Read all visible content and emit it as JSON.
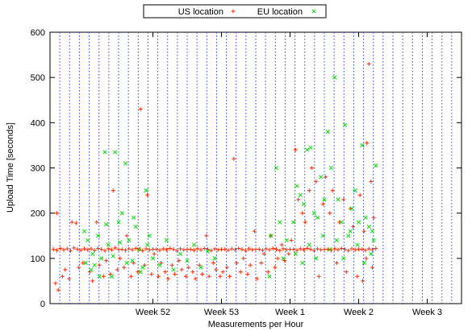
{
  "chart_data": {
    "type": "scatter",
    "title": "",
    "xlabel": "Measurements per Hour",
    "ylabel": "Upload Time [seconds]",
    "ylim": [
      0,
      600
    ],
    "yticks": [
      0,
      100,
      200,
      300,
      400,
      500,
      600
    ],
    "xlim_weeks": [
      50.5,
      56.5
    ],
    "xticks": [
      {
        "label": "Week 52",
        "pos": 52
      },
      {
        "label": "Week 53",
        "pos": 53
      },
      {
        "label": "Week 1",
        "pos": 54
      },
      {
        "label": "Week 2",
        "pos": 55
      },
      {
        "label": "Week 3",
        "pos": 56
      }
    ],
    "grid": "dotted vertical lines (blue), one per day",
    "legend_position": "top-center",
    "series": [
      {
        "name": "US location",
        "marker": "+",
        "color": "#ff2a00",
        "baseline": 120,
        "points": [
          [
            50.55,
            120
          ],
          [
            50.6,
            118
          ],
          [
            50.65,
            122
          ],
          [
            50.7,
            119
          ],
          [
            50.75,
            121
          ],
          [
            50.8,
            117
          ],
          [
            50.85,
            123
          ],
          [
            50.9,
            120
          ],
          [
            50.95,
            118
          ],
          [
            51.0,
            121
          ],
          [
            50.58,
            45
          ],
          [
            50.62,
            30
          ],
          [
            50.68,
            60
          ],
          [
            50.72,
            75
          ],
          [
            50.78,
            55
          ],
          [
            50.82,
            180
          ],
          [
            50.88,
            178
          ],
          [
            50.92,
            80
          ],
          [
            50.98,
            90
          ],
          [
            50.6,
            200
          ],
          [
            51.05,
            119
          ],
          [
            51.1,
            121
          ],
          [
            51.15,
            118
          ],
          [
            51.2,
            122
          ],
          [
            51.25,
            120
          ],
          [
            51.3,
            117
          ],
          [
            51.35,
            121
          ],
          [
            51.4,
            119
          ],
          [
            51.45,
            123
          ],
          [
            51.5,
            120
          ],
          [
            51.08,
            70
          ],
          [
            51.12,
            50
          ],
          [
            51.18,
            180
          ],
          [
            51.22,
            85
          ],
          [
            51.28,
            60
          ],
          [
            51.32,
            95
          ],
          [
            51.38,
            65
          ],
          [
            51.42,
            250
          ],
          [
            51.48,
            75
          ],
          [
            51.52,
            100
          ],
          [
            51.55,
            120
          ],
          [
            51.6,
            118
          ],
          [
            51.65,
            121
          ],
          [
            51.7,
            119
          ],
          [
            51.75,
            122
          ],
          [
            51.8,
            120
          ],
          [
            51.85,
            117
          ],
          [
            51.9,
            121
          ],
          [
            51.95,
            119
          ],
          [
            52.0,
            120
          ],
          [
            51.58,
            80
          ],
          [
            51.62,
            150
          ],
          [
            51.68,
            60
          ],
          [
            51.72,
            90
          ],
          [
            51.78,
            70
          ],
          [
            51.82,
            430
          ],
          [
            51.88,
            85
          ],
          [
            51.92,
            240
          ],
          [
            51.98,
            65
          ],
          [
            52.02,
            110
          ],
          [
            52.05,
            120
          ],
          [
            52.1,
            118
          ],
          [
            52.15,
            121
          ],
          [
            52.2,
            119
          ],
          [
            52.25,
            122
          ],
          [
            52.3,
            120
          ],
          [
            52.35,
            117
          ],
          [
            52.4,
            121
          ],
          [
            52.45,
            119
          ],
          [
            52.5,
            120
          ],
          [
            52.08,
            60
          ],
          [
            52.12,
            90
          ],
          [
            52.18,
            70
          ],
          [
            52.22,
            55
          ],
          [
            52.28,
            85
          ],
          [
            52.32,
            65
          ],
          [
            52.38,
            95
          ],
          [
            52.42,
            75
          ],
          [
            52.48,
            60
          ],
          [
            52.52,
            80
          ],
          [
            52.55,
            120
          ],
          [
            52.6,
            118
          ],
          [
            52.65,
            121
          ],
          [
            52.7,
            119
          ],
          [
            52.75,
            122
          ],
          [
            52.8,
            120
          ],
          [
            52.85,
            117
          ],
          [
            52.9,
            121
          ],
          [
            52.95,
            119
          ],
          [
            53.0,
            120
          ],
          [
            52.58,
            70
          ],
          [
            52.62,
            55
          ],
          [
            52.68,
            85
          ],
          [
            52.72,
            65
          ],
          [
            52.78,
            150
          ],
          [
            52.82,
            60
          ],
          [
            52.88,
            90
          ],
          [
            52.92,
            75
          ],
          [
            52.98,
            60
          ],
          [
            53.02,
            70
          ],
          [
            53.05,
            120
          ],
          [
            53.1,
            118
          ],
          [
            53.15,
            121
          ],
          [
            53.2,
            119
          ],
          [
            53.25,
            122
          ],
          [
            53.3,
            120
          ],
          [
            53.35,
            117
          ],
          [
            53.4,
            121
          ],
          [
            53.45,
            119
          ],
          [
            53.5,
            120
          ],
          [
            53.08,
            80
          ],
          [
            53.12,
            60
          ],
          [
            53.18,
            320
          ],
          [
            53.22,
            90
          ],
          [
            53.28,
            70
          ],
          [
            53.32,
            100
          ],
          [
            53.38,
            65
          ],
          [
            53.42,
            85
          ],
          [
            53.48,
            160
          ],
          [
            53.52,
            55
          ],
          [
            53.55,
            120
          ],
          [
            53.6,
            118
          ],
          [
            53.65,
            121
          ],
          [
            53.7,
            119
          ],
          [
            53.75,
            122
          ],
          [
            53.8,
            120
          ],
          [
            53.85,
            117
          ],
          [
            53.9,
            121
          ],
          [
            53.95,
            119
          ],
          [
            54.0,
            120
          ],
          [
            53.58,
            90
          ],
          [
            53.62,
            110
          ],
          [
            53.68,
            70
          ],
          [
            53.72,
            150
          ],
          [
            53.78,
            80
          ],
          [
            53.82,
            100
          ],
          [
            53.88,
            130
          ],
          [
            53.92,
            95
          ],
          [
            53.98,
            110
          ],
          [
            54.02,
            140
          ],
          [
            54.05,
            120
          ],
          [
            54.1,
            118
          ],
          [
            54.15,
            121
          ],
          [
            54.2,
            119
          ],
          [
            54.25,
            122
          ],
          [
            54.3,
            120
          ],
          [
            54.35,
            117
          ],
          [
            54.4,
            121
          ],
          [
            54.45,
            119
          ],
          [
            54.5,
            120
          ],
          [
            54.08,
            340
          ],
          [
            54.12,
            230
          ],
          [
            54.18,
            200
          ],
          [
            54.22,
            180
          ],
          [
            54.28,
            250
          ],
          [
            54.32,
            300
          ],
          [
            54.38,
            270
          ],
          [
            54.42,
            60
          ],
          [
            54.48,
            220
          ],
          [
            54.52,
            280
          ],
          [
            54.55,
            120
          ],
          [
            54.6,
            118
          ],
          [
            54.65,
            121
          ],
          [
            54.7,
            119
          ],
          [
            54.75,
            122
          ],
          [
            54.8,
            120
          ],
          [
            54.85,
            117
          ],
          [
            54.9,
            121
          ],
          [
            54.95,
            119
          ],
          [
            55.0,
            120
          ],
          [
            54.58,
            200
          ],
          [
            54.62,
            250
          ],
          [
            54.68,
            90
          ],
          [
            54.72,
            180
          ],
          [
            54.78,
            230
          ],
          [
            54.82,
            70
          ],
          [
            54.88,
            210
          ],
          [
            54.92,
            170
          ],
          [
            54.98,
            60
          ],
          [
            55.02,
            240
          ],
          [
            55.05,
            120
          ],
          [
            55.1,
            118
          ],
          [
            55.15,
            121
          ],
          [
            55.2,
            119
          ],
          [
            55.25,
            122
          ],
          [
            55.08,
            160
          ],
          [
            55.12,
            355
          ],
          [
            55.15,
            530
          ],
          [
            55.18,
            270
          ],
          [
            55.22,
            190
          ],
          [
            55.06,
            50
          ],
          [
            55.11,
            100
          ],
          [
            55.2,
            80
          ]
        ]
      },
      {
        "name": "EU location",
        "marker": "x",
        "color": "#00dd00",
        "points": [
          [
            51.0,
            160
          ],
          [
            51.05,
            140
          ],
          [
            51.1,
            75
          ],
          [
            51.15,
            85
          ],
          [
            51.2,
            150
          ],
          [
            51.25,
            100
          ],
          [
            51.3,
            335
          ],
          [
            51.35,
            130
          ],
          [
            51.4,
            60
          ],
          [
            51.45,
            335
          ],
          [
            51.5,
            180
          ],
          [
            51.55,
            200
          ],
          [
            51.6,
            310
          ],
          [
            51.65,
            140
          ],
          [
            51.7,
            95
          ],
          [
            51.75,
            170
          ],
          [
            51.8,
            120
          ],
          [
            51.85,
            80
          ],
          [
            51.9,
            250
          ],
          [
            51.95,
            150
          ],
          [
            51.02,
            90
          ],
          [
            51.12,
            110
          ],
          [
            51.22,
            60
          ],
          [
            51.32,
            175
          ],
          [
            51.42,
            105
          ],
          [
            51.52,
            135
          ],
          [
            51.62,
            90
          ],
          [
            51.72,
            190
          ],
          [
            51.82,
            70
          ],
          [
            51.92,
            130
          ],
          [
            52.0,
            100
          ],
          [
            52.1,
            85
          ],
          [
            52.2,
            140
          ],
          [
            52.3,
            75
          ],
          [
            52.4,
            110
          ],
          [
            52.5,
            95
          ],
          [
            52.6,
            130
          ],
          [
            52.7,
            80
          ],
          [
            52.8,
            115
          ],
          [
            52.9,
            100
          ],
          [
            53.7,
            60
          ],
          [
            53.8,
            300
          ],
          [
            53.9,
            100
          ],
          [
            53.95,
            140
          ],
          [
            53.72,
            150
          ],
          [
            53.85,
            180
          ],
          [
            54.05,
            180
          ],
          [
            54.1,
            260
          ],
          [
            54.15,
            240
          ],
          [
            54.2,
            220
          ],
          [
            54.25,
            340
          ],
          [
            54.3,
            345
          ],
          [
            54.35,
            200
          ],
          [
            54.4,
            190
          ],
          [
            54.45,
            280
          ],
          [
            54.5,
            230
          ],
          [
            54.55,
            380
          ],
          [
            54.6,
            300
          ],
          [
            54.65,
            500
          ],
          [
            54.7,
            230
          ],
          [
            54.75,
            180
          ],
          [
            54.8,
            395
          ],
          [
            54.85,
            150
          ],
          [
            54.9,
            210
          ],
          [
            54.95,
            250
          ],
          [
            55.0,
            180
          ],
          [
            54.08,
            110
          ],
          [
            54.18,
            90
          ],
          [
            54.28,
            130
          ],
          [
            54.38,
            100
          ],
          [
            54.48,
            150
          ],
          [
            54.58,
            120
          ],
          [
            54.68,
            140
          ],
          [
            54.78,
            100
          ],
          [
            54.88,
            160
          ],
          [
            54.98,
            130
          ],
          [
            55.05,
            350
          ],
          [
            55.1,
            190
          ],
          [
            55.15,
            170
          ],
          [
            55.2,
            160
          ],
          [
            55.25,
            305
          ],
          [
            55.08,
            90
          ],
          [
            55.18,
            110
          ],
          [
            55.22,
            140
          ]
        ]
      }
    ]
  }
}
